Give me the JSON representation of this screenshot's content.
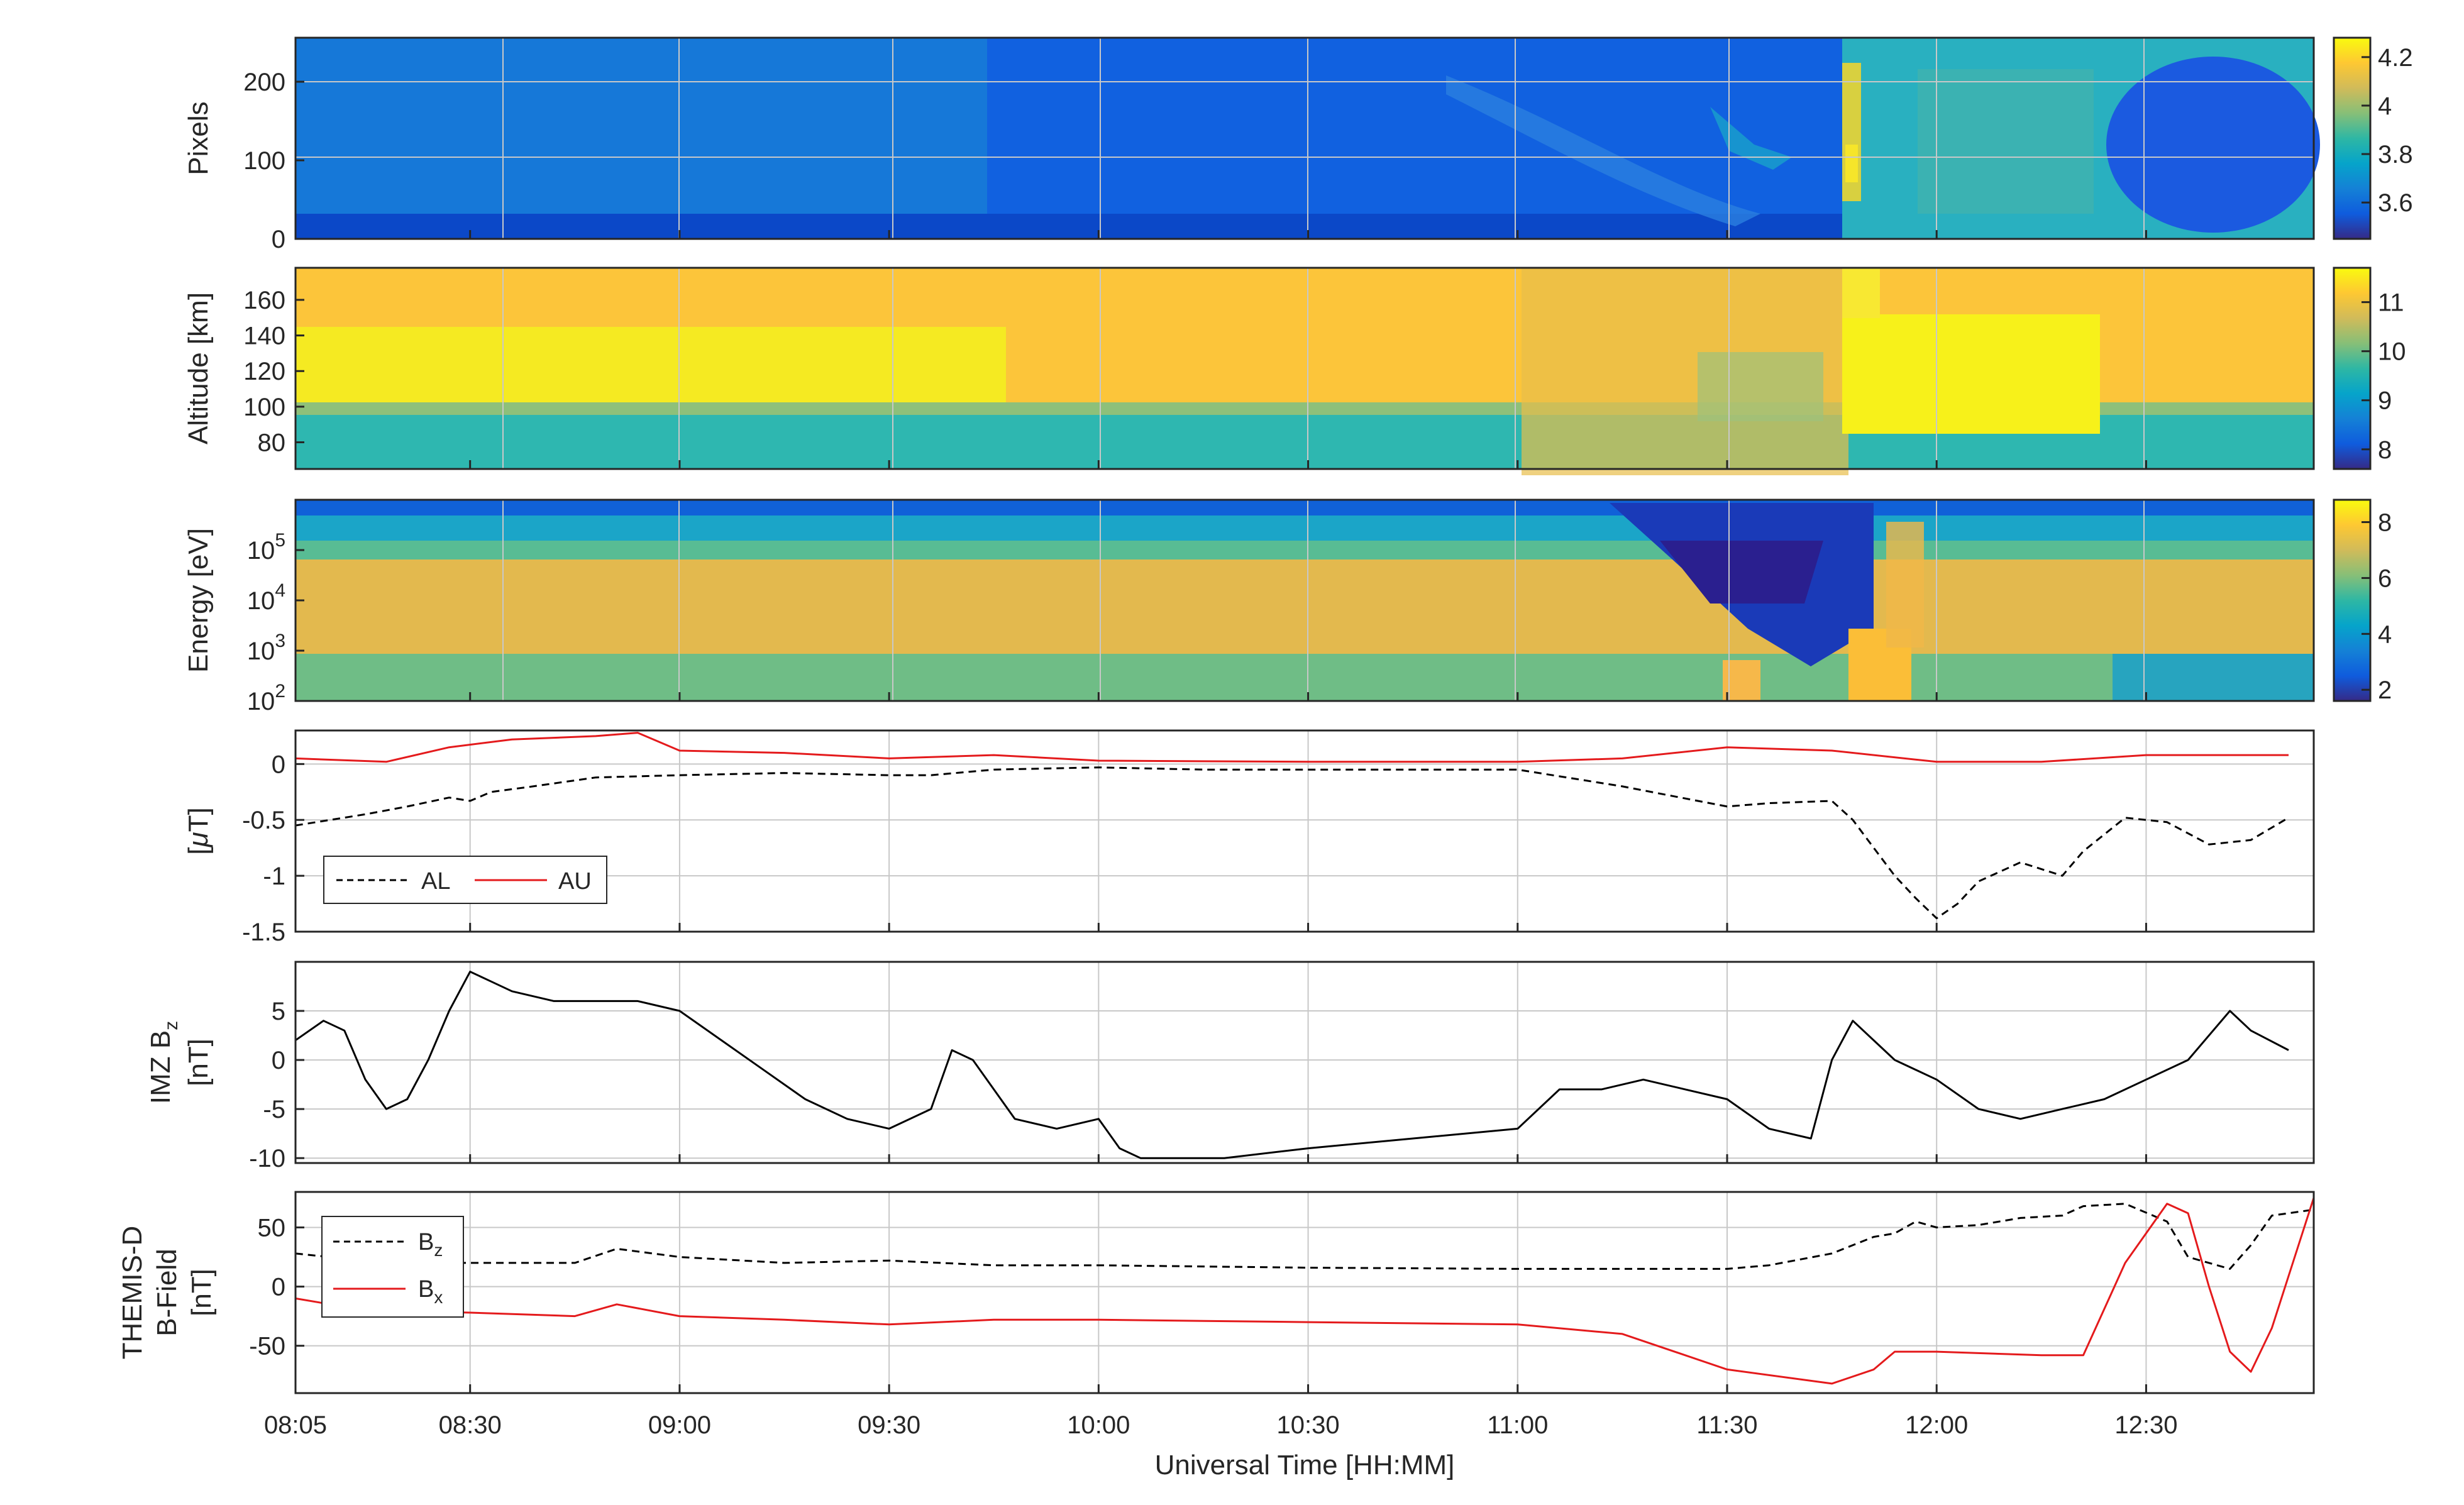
{
  "chart_data": [
    {
      "id": "p1",
      "type": "heatmap",
      "ylabel": "Pixels",
      "yticks": [
        "0",
        "100",
        "200"
      ],
      "ytick_values": [
        0,
        100,
        200
      ],
      "ylim": [
        0,
        256
      ],
      "colorbar_ticks": [
        "3.6",
        "3.8",
        "4",
        "4.2"
      ],
      "colorbar_tick_values": [
        3.6,
        3.8,
        4.0,
        4.2
      ],
      "colorbar_range": [
        3.45,
        4.28
      ],
      "colormap": "parula"
    },
    {
      "id": "p2",
      "type": "heatmap",
      "ylabel": "Altitude [km]",
      "yticks": [
        "80",
        "100",
        "120",
        "140",
        "160"
      ],
      "ytick_values": [
        80,
        100,
        120,
        140,
        160
      ],
      "ylim": [
        65,
        178
      ],
      "colorbar_ticks": [
        "8",
        "9",
        "10",
        "11"
      ],
      "colorbar_tick_values": [
        8,
        9,
        10,
        11
      ],
      "colorbar_range": [
        7.6,
        11.7
      ],
      "colormap": "parula"
    },
    {
      "id": "p3",
      "type": "heatmap",
      "ylabel": "Energy [eV]",
      "yticks": [
        "10",
        "10",
        "10",
        "10"
      ],
      "ytick_exponents": [
        "2",
        "3",
        "4",
        "5"
      ],
      "ytick_values": [
        2,
        3,
        4,
        5
      ],
      "ylim": [
        2,
        6
      ],
      "colorbar_ticks": [
        "2",
        "4",
        "6",
        "8"
      ],
      "colorbar_tick_values": [
        2,
        4,
        6,
        8
      ],
      "colorbar_range": [
        1.6,
        8.8
      ],
      "colormap": "parula"
    },
    {
      "id": "p4",
      "type": "line",
      "ylabel_pre": "[",
      "ylabel_mu": "μ",
      "ylabel_post": "T]",
      "yticks": [
        "-1.5",
        "-1",
        "-0.5",
        "0"
      ],
      "ytick_values": [
        -1.5,
        -1,
        -0.5,
        0
      ],
      "ylim": [
        -1.5,
        0.3
      ],
      "legend": "bottom-left",
      "series": [
        {
          "name": "AL",
          "color": "#000000",
          "dash": "dashed",
          "x": [
            8.083,
            8.25,
            8.35,
            8.45,
            8.5,
            8.55,
            8.65,
            8.8,
            9,
            9.25,
            9.5,
            9.6,
            9.75,
            10,
            10.25,
            10.5,
            10.75,
            11,
            11.25,
            11.5,
            11.6,
            11.75,
            11.8,
            11.85,
            11.9,
            11.95,
            12,
            12.05,
            12.1,
            12.2,
            12.3,
            12.35,
            12.45,
            12.55,
            12.65,
            12.75,
            12.84
          ],
          "y": [
            -0.55,
            -0.45,
            -0.38,
            -0.3,
            -0.33,
            -0.25,
            -0.2,
            -0.12,
            -0.1,
            -0.08,
            -0.1,
            -0.1,
            -0.05,
            -0.03,
            -0.05,
            -0.05,
            -0.05,
            -0.05,
            -0.2,
            -0.38,
            -0.35,
            -0.33,
            -0.5,
            -0.75,
            -1.0,
            -1.2,
            -1.38,
            -1.25,
            -1.05,
            -0.88,
            -1.0,
            -0.78,
            -0.48,
            -0.52,
            -0.72,
            -0.68,
            -0.48
          ]
        },
        {
          "name": "AU",
          "color": "#e41a1c",
          "dash": "solid",
          "x": [
            8.083,
            8.3,
            8.45,
            8.6,
            8.8,
            8.9,
            9,
            9.25,
            9.5,
            9.75,
            10,
            10.5,
            11,
            11.25,
            11.5,
            11.75,
            12,
            12.25,
            12.5,
            12.84
          ],
          "y": [
            0.05,
            0.02,
            0.15,
            0.22,
            0.25,
            0.28,
            0.12,
            0.1,
            0.05,
            0.08,
            0.03,
            0.02,
            0.02,
            0.05,
            0.15,
            0.12,
            0.02,
            0.02,
            0.08,
            0.08
          ]
        }
      ]
    },
    {
      "id": "p5",
      "type": "line",
      "ylabel_line1": "IMZ B",
      "ylabel_sub": "z",
      "ylabel_line2": "[nT]",
      "yticks": [
        "-10",
        "-5",
        "0",
        "5"
      ],
      "ytick_values": [
        -10,
        -5,
        0,
        5
      ],
      "ylim": [
        -10.5,
        10
      ],
      "series": [
        {
          "name": "",
          "color": "#000000",
          "dash": "solid",
          "x": [
            8.083,
            8.15,
            8.2,
            8.25,
            8.3,
            8.35,
            8.4,
            8.45,
            8.5,
            8.55,
            8.6,
            8.7,
            8.8,
            8.9,
            9,
            9.1,
            9.2,
            9.3,
            9.4,
            9.5,
            9.6,
            9.65,
            9.7,
            9.75,
            9.8,
            9.9,
            10,
            10.05,
            10.1,
            10.2,
            10.3,
            10.5,
            10.75,
            11,
            11.1,
            11.2,
            11.3,
            11.4,
            11.5,
            11.6,
            11.7,
            11.75,
            11.8,
            11.85,
            11.9,
            12,
            12.1,
            12.2,
            12.3,
            12.4,
            12.5,
            12.6,
            12.7,
            12.75,
            12.84
          ],
          "y": [
            2,
            4,
            3,
            -2,
            -5,
            -4,
            0,
            5,
            9,
            8,
            7,
            6,
            6,
            6,
            5,
            2,
            -1,
            -4,
            -6,
            -7,
            -5,
            1,
            0,
            -3,
            -6,
            -7,
            -6,
            -9,
            -10,
            -10,
            -10,
            -9,
            -8,
            -7,
            -3,
            -3,
            -2,
            -3,
            -4,
            -7,
            -8,
            0,
            4,
            2,
            0,
            -2,
            -5,
            -6,
            -5,
            -4,
            -2,
            0,
            5,
            3,
            1
          ]
        }
      ]
    },
    {
      "id": "p6",
      "type": "line",
      "ylabel_line1": "THEMIS-D",
      "ylabel_line2": "B-Field",
      "ylabel_line3": "[nT]",
      "xlabel": "Universal Time [HH:MM]",
      "xticks": [
        "08:05",
        "08:30",
        "09:00",
        "09:30",
        "10:00",
        "10:30",
        "11:00",
        "11:30",
        "12:00",
        "12:30"
      ],
      "xtick_values": [
        8.0833,
        8.5,
        9.0,
        9.5,
        10.0,
        10.5,
        11.0,
        11.5,
        12.0,
        12.5
      ],
      "xlim": [
        8.0833,
        12.9
      ],
      "yticks": [
        "-50",
        "0",
        "50"
      ],
      "ytick_values": [
        -50,
        0,
        50
      ],
      "ylim": [
        -90,
        80
      ],
      "legend": "top-left",
      "series": [
        {
          "name_main": "B",
          "name_sub": "z",
          "color": "#000000",
          "dash": "dashed",
          "x": [
            8.083,
            8.3,
            8.5,
            8.75,
            8.85,
            9,
            9.25,
            9.5,
            9.75,
            10,
            10.5,
            11,
            11.25,
            11.5,
            11.6,
            11.75,
            11.85,
            11.9,
            11.95,
            12,
            12.1,
            12.2,
            12.3,
            12.35,
            12.45,
            12.55,
            12.6,
            12.7,
            12.75,
            12.8,
            12.9
          ],
          "y": [
            28,
            20,
            20,
            20,
            32,
            25,
            20,
            22,
            18,
            18,
            16,
            15,
            15,
            15,
            18,
            28,
            42,
            45,
            55,
            50,
            52,
            58,
            60,
            68,
            70,
            55,
            25,
            15,
            35,
            60,
            65
          ]
        },
        {
          "name_main": "B",
          "name_sub": "x",
          "color": "#e41a1c",
          "dash": "solid",
          "x": [
            8.083,
            8.25,
            8.5,
            8.75,
            8.85,
            9,
            9.25,
            9.5,
            9.75,
            10,
            10.5,
            11,
            11.25,
            11.5,
            11.75,
            11.85,
            11.9,
            12,
            12.25,
            12.35,
            12.45,
            12.55,
            12.6,
            12.65,
            12.7,
            12.75,
            12.8,
            12.85,
            12.9
          ],
          "y": [
            -10,
            -20,
            -22,
            -25,
            -15,
            -25,
            -28,
            -32,
            -28,
            -28,
            -30,
            -32,
            -40,
            -70,
            -82,
            -70,
            -55,
            -55,
            -58,
            -58,
            20,
            70,
            62,
            0,
            -55,
            -72,
            -35,
            20,
            75
          ]
        }
      ]
    }
  ]
}
